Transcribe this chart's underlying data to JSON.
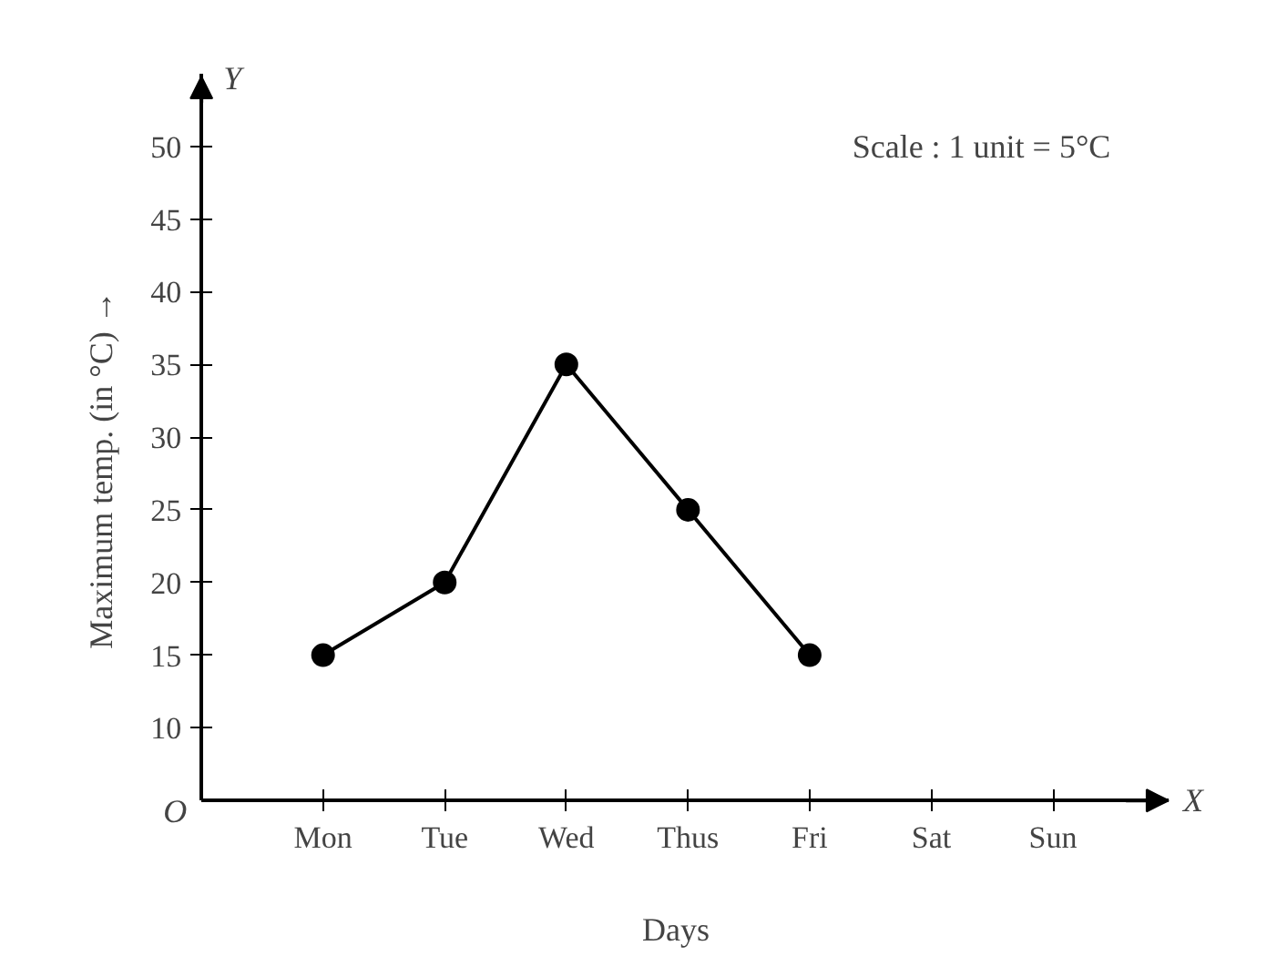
{
  "chart_data": {
    "type": "line",
    "xlabel": "Days",
    "ylabel": "Maximum temp. (in °C) →",
    "categories": [
      "Mon",
      "Tue",
      "Wed",
      "Thus",
      "Fri",
      "Sat",
      "Sun"
    ],
    "series": [
      {
        "color": "#000000",
        "values": [
          15,
          20,
          35,
          25,
          15,
          null,
          null
        ]
      }
    ],
    "ylim": [
      5,
      55
    ],
    "yticks": [
      10,
      15,
      20,
      25,
      30,
      35,
      40,
      45,
      50
    ],
    "annotations": [
      "Scale : 1 unit = 5°C",
      "O",
      "X",
      "Y"
    ],
    "marker": "circle",
    "line_style": "solid",
    "grid": false
  }
}
